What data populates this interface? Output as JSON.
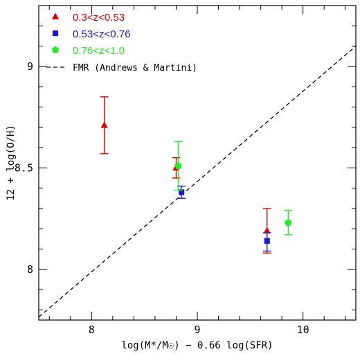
{
  "chart_data": {
    "type": "scatter",
    "xlabel": "log(M*/M☉) − 0.66 log(SFR)",
    "ylabel": "12 + log(O/H)",
    "xlim": [
      7.5,
      10.5
    ],
    "ylim": [
      7.75,
      9.3
    ],
    "x_ticks": [
      8,
      9,
      10
    ],
    "y_ticks": [
      8,
      8.5,
      9
    ],
    "x_tick_labels": [
      "8",
      "9",
      "10"
    ],
    "y_tick_labels": [
      "8",
      "8.5",
      "9"
    ],
    "legend_position": "top-left",
    "series": [
      {
        "name": "0.3<z<0.53",
        "marker": "triangle",
        "color": "#dd0000",
        "points": [
          {
            "x": 8.12,
            "y": 8.71,
            "err_low": 8.57,
            "err_high": 8.85
          },
          {
            "x": 8.8,
            "y": 8.5,
            "err_low": 8.45,
            "err_high": 8.55
          },
          {
            "x": 9.66,
            "y": 8.19,
            "err_low": 8.08,
            "err_high": 8.3
          }
        ]
      },
      {
        "name": "0.53<z<0.76",
        "marker": "square",
        "color": "#1a1acc",
        "points": [
          {
            "x": 8.85,
            "y": 8.38,
            "err_low": 8.35,
            "err_high": 8.41
          },
          {
            "x": 9.66,
            "y": 8.14,
            "err_low": 8.09,
            "err_high": 8.18
          }
        ]
      },
      {
        "name": "0.76<z<1.0",
        "marker": "pentagon",
        "color": "#22ee22",
        "points": [
          {
            "x": 8.82,
            "y": 8.51,
            "err_low": 8.39,
            "err_high": 8.63
          },
          {
            "x": 9.86,
            "y": 8.23,
            "err_low": 8.17,
            "err_high": 8.29
          }
        ]
      }
    ],
    "fmr_line": {
      "name": "FMR (Andrews & Martini)",
      "style": "dashed",
      "color": "#000000",
      "points": [
        [
          7.5,
          7.765
        ],
        [
          10.5,
          9.1
        ]
      ]
    }
  }
}
